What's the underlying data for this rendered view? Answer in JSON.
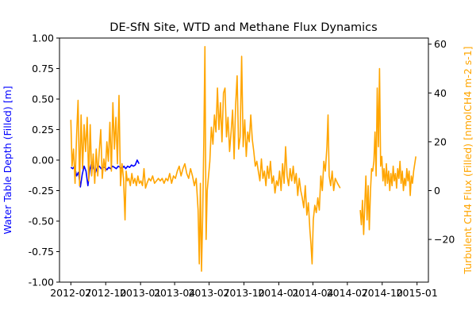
{
  "chart_data": {
    "type": "line",
    "title": "DE-SfN Site, WTD and Methane Flux Dynamics",
    "xlabel": "",
    "y_left_label": "Water Table Depth (Filled) [m]",
    "y_right_label": "Turbulent CH4 Flux (Filled) [nmolCH4 m-2 s-1]",
    "x_range": [
      "2012-06-01",
      "2015-01-31"
    ],
    "x_ticks": [
      "2012-07",
      "2012-10",
      "2013-01",
      "2013-04",
      "2013-07",
      "2013-10",
      "2014-01",
      "2014-04",
      "2014-07",
      "2014-10",
      "2015-01"
    ],
    "y_left_lim": [
      -1.0,
      1.0
    ],
    "y_left_ticks": [
      -1.0,
      -0.75,
      -0.5,
      -0.25,
      0.0,
      0.25,
      0.5,
      0.75,
      1.0
    ],
    "y_right_lim": [
      -37.5,
      62.5
    ],
    "y_right_ticks": [
      -20,
      0,
      20,
      40,
      60
    ],
    "grid": false,
    "colors": {
      "left_axis": "#0000ff",
      "right_axis": "#ffa500"
    },
    "series": [
      {
        "axis": "left",
        "color": "#0000ff",
        "points": [
          [
            "2012-07-01",
            -0.06
          ],
          [
            "2012-07-06",
            -0.07
          ],
          [
            "2012-07-11",
            -0.05
          ],
          [
            "2012-07-16",
            -0.13
          ],
          [
            "2012-07-21",
            -0.1
          ],
          [
            "2012-07-26",
            -0.22
          ],
          [
            "2012-07-31",
            -0.12
          ],
          [
            "2012-08-05",
            -0.05
          ],
          [
            "2012-08-10",
            -0.09
          ],
          [
            "2012-08-15",
            -0.21
          ],
          [
            "2012-08-20",
            -0.08
          ],
          [
            "2012-08-25",
            -0.02
          ],
          [
            "2012-08-30",
            -0.07
          ],
          [
            "2012-09-04",
            -0.1
          ],
          [
            "2012-09-09",
            -0.06
          ],
          [
            "2012-09-14",
            -0.05
          ],
          [
            "2012-09-19",
            -0.07
          ],
          [
            "2012-09-24",
            -0.06
          ],
          [
            "2012-09-29",
            -0.06
          ],
          [
            "2012-10-04",
            -0.08
          ],
          [
            "2012-10-09",
            -0.06
          ],
          [
            "2012-10-14",
            -0.07
          ],
          [
            "2012-10-19",
            -0.05
          ],
          [
            "2012-10-24",
            -0.06
          ],
          [
            "2012-10-29",
            -0.07
          ],
          [
            "2012-11-03",
            -0.05
          ],
          [
            "2012-11-08",
            -0.06
          ],
          [
            "2012-11-13",
            -0.07
          ],
          [
            "2012-11-18",
            -0.05
          ],
          [
            "2012-11-23",
            -0.07
          ],
          [
            "2012-11-28",
            -0.05
          ],
          [
            "2012-12-03",
            -0.06
          ],
          [
            "2012-12-08",
            -0.04
          ],
          [
            "2012-12-13",
            -0.05
          ],
          [
            "2012-12-18",
            -0.04
          ],
          [
            "2012-12-23",
            0.0
          ],
          [
            "2012-12-28",
            -0.03
          ]
        ]
      },
      {
        "axis": "right",
        "color": "#ffa500",
        "points": [
          [
            "2012-07-01",
            29
          ],
          [
            "2012-07-04",
            10
          ],
          [
            "2012-07-08",
            17
          ],
          [
            "2012-07-12",
            3
          ],
          [
            "2012-07-16",
            22
          ],
          [
            "2012-07-20",
            37
          ],
          [
            "2012-07-24",
            2
          ],
          [
            "2012-07-28",
            31
          ],
          [
            "2012-08-01",
            9
          ],
          [
            "2012-08-05",
            27
          ],
          [
            "2012-08-09",
            16
          ],
          [
            "2012-08-13",
            30
          ],
          [
            "2012-08-17",
            4
          ],
          [
            "2012-08-21",
            27
          ],
          [
            "2012-08-25",
            6
          ],
          [
            "2012-08-29",
            15
          ],
          [
            "2012-09-02",
            3
          ],
          [
            "2012-09-06",
            17
          ],
          [
            "2012-09-10",
            6
          ],
          [
            "2012-09-14",
            16
          ],
          [
            "2012-09-18",
            25
          ],
          [
            "2012-09-22",
            5
          ],
          [
            "2012-09-26",
            13
          ],
          [
            "2012-09-30",
            8
          ],
          [
            "2012-10-04",
            20
          ],
          [
            "2012-10-08",
            12
          ],
          [
            "2012-10-12",
            28
          ],
          [
            "2012-10-16",
            8
          ],
          [
            "2012-10-20",
            36
          ],
          [
            "2012-10-24",
            17
          ],
          [
            "2012-10-28",
            30
          ],
          [
            "2012-11-01",
            11
          ],
          [
            "2012-11-05",
            39
          ],
          [
            "2012-11-09",
            2
          ],
          [
            "2012-11-13",
            11
          ],
          [
            "2012-11-17",
            5
          ],
          [
            "2012-11-21",
            -12
          ],
          [
            "2012-11-24",
            8
          ],
          [
            "2012-11-27",
            4
          ],
          [
            "2012-12-01",
            5
          ],
          [
            "2012-12-05",
            2
          ],
          [
            "2012-12-09",
            7
          ],
          [
            "2012-12-13",
            3
          ],
          [
            "2012-12-17",
            5
          ],
          [
            "2012-12-21",
            2
          ],
          [
            "2012-12-25",
            6
          ],
          [
            "2012-12-29",
            3
          ],
          [
            "2013-01-02",
            4
          ],
          [
            "2013-01-06",
            2
          ],
          [
            "2013-01-10",
            9
          ],
          [
            "2013-01-14",
            1
          ],
          [
            "2013-01-18",
            3
          ],
          [
            "2013-01-23",
            5
          ],
          [
            "2013-01-28",
            4
          ],
          [
            "2013-02-02",
            6
          ],
          [
            "2013-02-07",
            3
          ],
          [
            "2013-02-12",
            4
          ],
          [
            "2013-02-17",
            5
          ],
          [
            "2013-02-22",
            4
          ],
          [
            "2013-02-27",
            5
          ],
          [
            "2013-03-04",
            3
          ],
          [
            "2013-03-09",
            5
          ],
          [
            "2013-03-14",
            4
          ],
          [
            "2013-03-19",
            7
          ],
          [
            "2013-03-24",
            3
          ],
          [
            "2013-03-29",
            6
          ],
          [
            "2013-04-03",
            5
          ],
          [
            "2013-04-08",
            8
          ],
          [
            "2013-04-13",
            10
          ],
          [
            "2013-04-18",
            6
          ],
          [
            "2013-04-23",
            9
          ],
          [
            "2013-04-28",
            11
          ],
          [
            "2013-05-03",
            7
          ],
          [
            "2013-05-08",
            5
          ],
          [
            "2013-05-13",
            9
          ],
          [
            "2013-05-18",
            6
          ],
          [
            "2013-05-23",
            2
          ],
          [
            "2013-05-28",
            5
          ],
          [
            "2013-06-02",
            -8
          ],
          [
            "2013-06-05",
            -30
          ],
          [
            "2013-06-08",
            3
          ],
          [
            "2013-06-11",
            -33
          ],
          [
            "2013-06-14",
            -10
          ],
          [
            "2013-06-17",
            20
          ],
          [
            "2013-06-20",
            59
          ],
          [
            "2013-06-23",
            -20
          ],
          [
            "2013-06-26",
            0
          ],
          [
            "2013-06-29",
            5
          ],
          [
            "2013-07-03",
            12
          ],
          [
            "2013-07-07",
            26
          ],
          [
            "2013-07-11",
            19
          ],
          [
            "2013-07-15",
            31
          ],
          [
            "2013-07-19",
            24
          ],
          [
            "2013-07-23",
            42
          ],
          [
            "2013-07-27",
            25
          ],
          [
            "2013-07-31",
            36
          ],
          [
            "2013-08-04",
            20
          ],
          [
            "2013-08-08",
            40
          ],
          [
            "2013-08-12",
            42
          ],
          [
            "2013-08-16",
            22
          ],
          [
            "2013-08-20",
            30
          ],
          [
            "2013-08-24",
            16
          ],
          [
            "2013-08-28",
            24
          ],
          [
            "2013-09-01",
            33
          ],
          [
            "2013-09-05",
            13
          ],
          [
            "2013-09-09",
            35
          ],
          [
            "2013-09-13",
            47
          ],
          [
            "2013-09-17",
            17
          ],
          [
            "2013-09-21",
            22
          ],
          [
            "2013-09-25",
            55
          ],
          [
            "2013-09-29",
            18
          ],
          [
            "2013-10-03",
            29
          ],
          [
            "2013-10-07",
            14
          ],
          [
            "2013-10-11",
            24
          ],
          [
            "2013-10-15",
            20
          ],
          [
            "2013-10-19",
            31
          ],
          [
            "2013-10-23",
            21
          ],
          [
            "2013-10-27",
            16
          ],
          [
            "2013-10-31",
            10
          ],
          [
            "2013-11-04",
            12
          ],
          [
            "2013-11-08",
            8
          ],
          [
            "2013-11-12",
            4
          ],
          [
            "2013-11-16",
            13
          ],
          [
            "2013-11-20",
            5
          ],
          [
            "2013-11-24",
            8
          ],
          [
            "2013-11-28",
            2
          ],
          [
            "2013-12-02",
            10
          ],
          [
            "2013-12-06",
            5
          ],
          [
            "2013-12-10",
            12
          ],
          [
            "2013-12-14",
            3
          ],
          [
            "2013-12-18",
            6
          ],
          [
            "2013-12-22",
            -1
          ],
          [
            "2013-12-26",
            4
          ],
          [
            "2013-12-30",
            2
          ],
          [
            "2014-01-03",
            8
          ],
          [
            "2014-01-07",
            0
          ],
          [
            "2014-01-11",
            11
          ],
          [
            "2014-01-15",
            3
          ],
          [
            "2014-01-19",
            18
          ],
          [
            "2014-01-23",
            6
          ],
          [
            "2014-01-27",
            2
          ],
          [
            "2014-01-31",
            9
          ],
          [
            "2014-02-04",
            4
          ],
          [
            "2014-02-08",
            10
          ],
          [
            "2014-02-12",
            3
          ],
          [
            "2014-02-16",
            7
          ],
          [
            "2014-02-20",
            -2
          ],
          [
            "2014-02-24",
            5
          ],
          [
            "2014-02-28",
            0
          ],
          [
            "2014-03-04",
            -3
          ],
          [
            "2014-03-08",
            -7
          ],
          [
            "2014-03-12",
            2
          ],
          [
            "2014-03-16",
            -10
          ],
          [
            "2014-03-20",
            -5
          ],
          [
            "2014-03-24",
            -16
          ],
          [
            "2014-03-27",
            -22
          ],
          [
            "2014-03-30",
            -30
          ],
          [
            "2014-04-02",
            -12
          ],
          [
            "2014-04-06",
            -6
          ],
          [
            "2014-04-10",
            -9
          ],
          [
            "2014-04-14",
            -3
          ],
          [
            "2014-04-18",
            -8
          ],
          [
            "2014-04-22",
            6
          ],
          [
            "2014-04-26",
            0
          ],
          [
            "2014-04-30",
            12
          ],
          [
            "2014-05-04",
            8
          ],
          [
            "2014-05-08",
            18
          ],
          [
            "2014-05-11",
            31
          ],
          [
            "2014-05-14",
            6
          ],
          [
            "2014-05-18",
            2
          ],
          [
            "2014-05-22",
            8
          ],
          [
            "2014-05-26",
            0
          ],
          [
            "2014-05-30",
            5
          ],
          [
            "2014-06-05",
            3
          ],
          [
            "2014-06-12",
            1
          ],
          null,
          [
            "2014-08-04",
            -8
          ],
          [
            "2014-08-07",
            -14
          ],
          [
            "2014-08-10",
            -4
          ],
          [
            "2014-08-13",
            -18
          ],
          [
            "2014-08-16",
            -6
          ],
          [
            "2014-08-19",
            6
          ],
          [
            "2014-08-22",
            -12
          ],
          [
            "2014-08-25",
            2
          ],
          [
            "2014-08-28",
            -16
          ],
          [
            "2014-08-31",
            0
          ],
          [
            "2014-09-03",
            9
          ],
          [
            "2014-09-06",
            8
          ],
          [
            "2014-09-09",
            12
          ],
          [
            "2014-09-12",
            24
          ],
          [
            "2014-09-15",
            6
          ],
          [
            "2014-09-18",
            42
          ],
          [
            "2014-09-21",
            18
          ],
          [
            "2014-09-24",
            50
          ],
          [
            "2014-09-27",
            10
          ],
          [
            "2014-09-30",
            14
          ],
          [
            "2014-10-03",
            4
          ],
          [
            "2014-10-06",
            9
          ],
          [
            "2014-10-09",
            2
          ],
          [
            "2014-10-12",
            11
          ],
          [
            "2014-10-15",
            3
          ],
          [
            "2014-10-18",
            8
          ],
          [
            "2014-10-21",
            0
          ],
          [
            "2014-10-24",
            7
          ],
          [
            "2014-10-27",
            2
          ],
          [
            "2014-10-30",
            10
          ],
          [
            "2014-11-02",
            4
          ],
          [
            "2014-11-05",
            7
          ],
          [
            "2014-11-08",
            1
          ],
          [
            "2014-11-11",
            9
          ],
          [
            "2014-11-14",
            5
          ],
          [
            "2014-11-17",
            12
          ],
          [
            "2014-11-20",
            3
          ],
          [
            "2014-11-23",
            8
          ],
          [
            "2014-11-26",
            0
          ],
          [
            "2014-11-29",
            5
          ],
          [
            "2014-12-02",
            2
          ],
          [
            "2014-12-05",
            9
          ],
          [
            "2014-12-08",
            4
          ],
          [
            "2014-12-11",
            8
          ],
          [
            "2014-12-14",
            -2
          ],
          [
            "2014-12-17",
            6
          ],
          [
            "2014-12-20",
            3
          ],
          [
            "2014-12-23",
            8
          ],
          [
            "2014-12-26",
            11
          ],
          [
            "2014-12-29",
            14
          ]
        ]
      }
    ]
  }
}
